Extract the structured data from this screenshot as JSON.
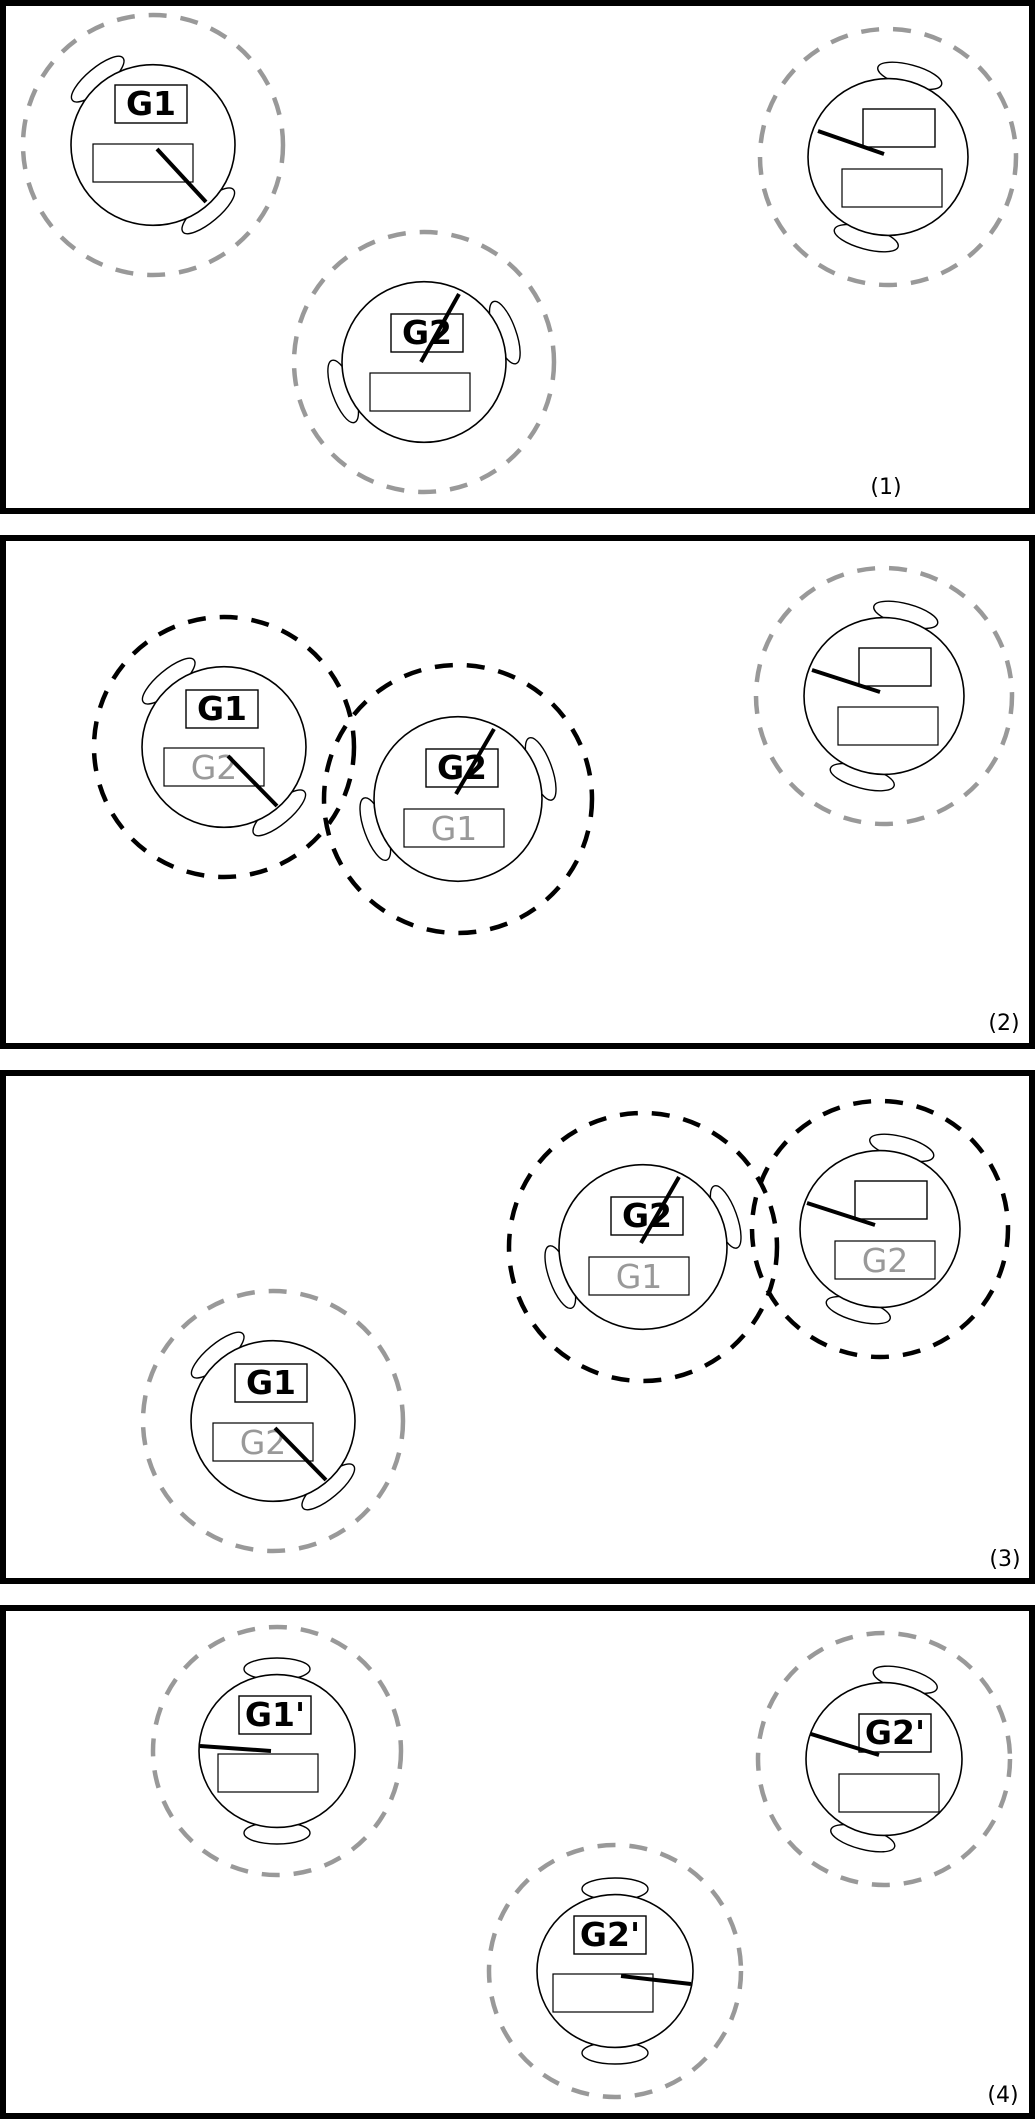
{
  "colors": {
    "frame": "#000000",
    "active_halo": "#000000",
    "inactive_halo": "#999999",
    "received_label": "#999999"
  },
  "panels": [
    {
      "number": "(1)",
      "robots": [
        {
          "top_label": "G1",
          "bottom_label": "",
          "halo": "inactive"
        },
        {
          "top_label": "G2",
          "bottom_label": "",
          "halo": "inactive"
        },
        {
          "top_label": "",
          "bottom_label": "",
          "halo": "inactive"
        }
      ]
    },
    {
      "number": "(2)",
      "robots": [
        {
          "top_label": "G1",
          "bottom_label": "G2",
          "halo": "active"
        },
        {
          "top_label": "G2",
          "bottom_label": "G1",
          "halo": "active"
        },
        {
          "top_label": "",
          "bottom_label": "",
          "halo": "inactive"
        }
      ]
    },
    {
      "number": "(3)",
      "robots": [
        {
          "top_label": "G2",
          "bottom_label": "G1",
          "halo": "active"
        },
        {
          "top_label": "",
          "bottom_label": "G2",
          "halo": "active"
        },
        {
          "top_label": "G1",
          "bottom_label": "G2",
          "halo": "inactive"
        }
      ]
    },
    {
      "number": "(4)",
      "robots": [
        {
          "top_label": "G1'",
          "bottom_label": "",
          "halo": "inactive"
        },
        {
          "top_label": "G2'",
          "bottom_label": "",
          "halo": "inactive"
        },
        {
          "top_label": "G2'",
          "bottom_label": "",
          "halo": "inactive"
        }
      ]
    }
  ]
}
